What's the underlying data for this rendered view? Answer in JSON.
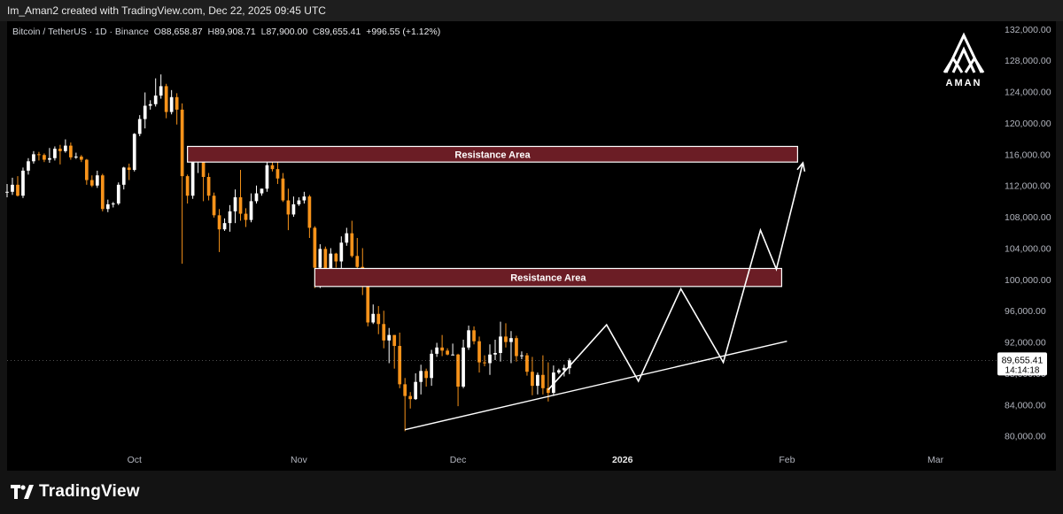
{
  "header": {
    "attribution": "Im_Aman2 created with TradingView.com, Dec 22, 2025 09:45 UTC"
  },
  "legend": {
    "symbol": "Bitcoin / TetherUS · 1D · Binance",
    "open_label": "O",
    "open": "88,658.87",
    "high_label": "H",
    "high": "89,908.71",
    "low_label": "L",
    "low": "87,900.00",
    "close_label": "C",
    "close": "89,655.41",
    "change": "+996.55 (+1.12%)"
  },
  "price_tag": {
    "price": "89,655.41",
    "countdown": "14:14:18"
  },
  "brand": {
    "logo_text": "AMAN"
  },
  "footer": {
    "logo_text": "TradingView"
  },
  "colors": {
    "up": "#ffffff",
    "down": "#f7931a",
    "zone_fill": "#6b1d25",
    "zone_border": "#ffffff",
    "background": "#000000",
    "axis_text": "#b2b5be"
  },
  "chart_data": {
    "type": "candlestick",
    "title": "Bitcoin / TetherUS",
    "timeframe": "1D",
    "exchange": "Binance",
    "y_axis": {
      "ticks": [
        "132,000.00",
        "128,000.00",
        "124,000.00",
        "120,000.00",
        "116,000.00",
        "112,000.00",
        "108,000.00",
        "104,000.00",
        "100,000.00",
        "96,000.00",
        "92,000.00",
        "88,000.00",
        "84,000.00",
        "80,000.00"
      ],
      "range": [
        78500,
        133000
      ]
    },
    "x_axis": {
      "ticks": [
        {
          "label": "Oct",
          "date": "2025-10-01"
        },
        {
          "label": "Nov",
          "date": "2025-11-01"
        },
        {
          "label": "Dec",
          "date": "2025-12-01"
        },
        {
          "label": "2026",
          "date": "2026-01-01",
          "bold": true
        },
        {
          "label": "Feb",
          "date": "2026-02-01"
        },
        {
          "label": "Mar",
          "date": "2026-03-01"
        }
      ],
      "range": [
        "2025-09-07",
        "2026-03-10"
      ]
    },
    "candles": [
      {
        "date": "2025-09-07",
        "o": 111100,
        "h": 112200,
        "l": 110500,
        "c": 111200
      },
      {
        "date": "2025-09-08",
        "o": 111200,
        "h": 113000,
        "l": 110800,
        "c": 112100
      },
      {
        "date": "2025-09-09",
        "o": 112100,
        "h": 113200,
        "l": 110600,
        "c": 110700
      },
      {
        "date": "2025-09-10",
        "o": 110700,
        "h": 114300,
        "l": 110400,
        "c": 113900
      },
      {
        "date": "2025-09-11",
        "o": 113900,
        "h": 115500,
        "l": 113400,
        "c": 115100
      },
      {
        "date": "2025-09-12",
        "o": 115100,
        "h": 116400,
        "l": 114800,
        "c": 116000
      },
      {
        "date": "2025-09-13",
        "o": 116000,
        "h": 116300,
        "l": 115200,
        "c": 115900
      },
      {
        "date": "2025-09-14",
        "o": 115900,
        "h": 116100,
        "l": 115000,
        "c": 115300
      },
      {
        "date": "2025-09-15",
        "o": 115300,
        "h": 116800,
        "l": 114900,
        "c": 115500
      },
      {
        "date": "2025-09-16",
        "o": 115500,
        "h": 117000,
        "l": 115200,
        "c": 116700
      },
      {
        "date": "2025-09-17",
        "o": 116700,
        "h": 117200,
        "l": 114700,
        "c": 116400
      },
      {
        "date": "2025-09-18",
        "o": 116400,
        "h": 117900,
        "l": 116200,
        "c": 117100
      },
      {
        "date": "2025-09-19",
        "o": 117100,
        "h": 117500,
        "l": 115300,
        "c": 115600
      },
      {
        "date": "2025-09-20",
        "o": 115600,
        "h": 116200,
        "l": 115400,
        "c": 115700
      },
      {
        "date": "2025-09-21",
        "o": 115700,
        "h": 115900,
        "l": 115000,
        "c": 115300
      },
      {
        "date": "2025-09-22",
        "o": 115300,
        "h": 115400,
        "l": 112100,
        "c": 112700
      },
      {
        "date": "2025-09-23",
        "o": 112700,
        "h": 113300,
        "l": 111800,
        "c": 112000
      },
      {
        "date": "2025-09-24",
        "o": 112000,
        "h": 113900,
        "l": 111700,
        "c": 113300
      },
      {
        "date": "2025-09-25",
        "o": 113300,
        "h": 113500,
        "l": 108700,
        "c": 109000
      },
      {
        "date": "2025-09-26",
        "o": 109000,
        "h": 110200,
        "l": 108600,
        "c": 109600
      },
      {
        "date": "2025-09-27",
        "o": 109600,
        "h": 109900,
        "l": 109200,
        "c": 109700
      },
      {
        "date": "2025-09-28",
        "o": 109700,
        "h": 112400,
        "l": 109500,
        "c": 112100
      },
      {
        "date": "2025-09-29",
        "o": 112100,
        "h": 114400,
        "l": 111500,
        "c": 114300
      },
      {
        "date": "2025-09-30",
        "o": 114300,
        "h": 114800,
        "l": 112700,
        "c": 114000
      },
      {
        "date": "2025-10-01",
        "o": 114000,
        "h": 118700,
        "l": 113800,
        "c": 118600
      },
      {
        "date": "2025-10-02",
        "o": 118600,
        "h": 121000,
        "l": 118300,
        "c": 120500
      },
      {
        "date": "2025-10-03",
        "o": 120500,
        "h": 123900,
        "l": 119300,
        "c": 122200
      },
      {
        "date": "2025-10-04",
        "o": 122200,
        "h": 122900,
        "l": 121700,
        "c": 122400
      },
      {
        "date": "2025-10-05",
        "o": 122400,
        "h": 125700,
        "l": 122100,
        "c": 123500
      },
      {
        "date": "2025-10-06",
        "o": 123500,
        "h": 126200,
        "l": 123100,
        "c": 124700
      },
      {
        "date": "2025-10-07",
        "o": 124700,
        "h": 125000,
        "l": 120600,
        "c": 121400
      },
      {
        "date": "2025-10-08",
        "o": 121400,
        "h": 124200,
        "l": 121100,
        "c": 123300
      },
      {
        "date": "2025-10-09",
        "o": 123300,
        "h": 123800,
        "l": 119800,
        "c": 121700
      },
      {
        "date": "2025-10-10",
        "o": 121700,
        "h": 122500,
        "l": 102000,
        "c": 113200
      },
      {
        "date": "2025-10-11",
        "o": 113200,
        "h": 113400,
        "l": 109700,
        "c": 110700
      },
      {
        "date": "2025-10-12",
        "o": 110700,
        "h": 115500,
        "l": 110300,
        "c": 115100
      },
      {
        "date": "2025-10-13",
        "o": 115100,
        "h": 115900,
        "l": 113600,
        "c": 115200
      },
      {
        "date": "2025-10-14",
        "o": 115200,
        "h": 115400,
        "l": 110000,
        "c": 113100
      },
      {
        "date": "2025-10-15",
        "o": 113100,
        "h": 113600,
        "l": 110100,
        "c": 110700
      },
      {
        "date": "2025-10-16",
        "o": 110700,
        "h": 111100,
        "l": 107900,
        "c": 108200
      },
      {
        "date": "2025-10-17",
        "o": 108200,
        "h": 109000,
        "l": 103500,
        "c": 106400
      },
      {
        "date": "2025-10-18",
        "o": 106400,
        "h": 107800,
        "l": 106200,
        "c": 107200
      },
      {
        "date": "2025-10-19",
        "o": 107200,
        "h": 109500,
        "l": 106100,
        "c": 108700
      },
      {
        "date": "2025-10-20",
        "o": 108700,
        "h": 111500,
        "l": 107200,
        "c": 110500
      },
      {
        "date": "2025-10-21",
        "o": 110500,
        "h": 114000,
        "l": 107500,
        "c": 108400
      },
      {
        "date": "2025-10-22",
        "o": 108400,
        "h": 109100,
        "l": 106700,
        "c": 107600
      },
      {
        "date": "2025-10-23",
        "o": 107600,
        "h": 111000,
        "l": 107300,
        "c": 110000
      },
      {
        "date": "2025-10-24",
        "o": 110000,
        "h": 112000,
        "l": 109700,
        "c": 111000
      },
      {
        "date": "2025-10-25",
        "o": 111000,
        "h": 111600,
        "l": 110700,
        "c": 111600
      },
      {
        "date": "2025-10-26",
        "o": 111600,
        "h": 115300,
        "l": 111200,
        "c": 114600
      },
      {
        "date": "2025-10-27",
        "o": 114600,
        "h": 116400,
        "l": 113800,
        "c": 114100
      },
      {
        "date": "2025-10-28",
        "o": 114100,
        "h": 116000,
        "l": 112200,
        "c": 112900
      },
      {
        "date": "2025-10-29",
        "o": 112900,
        "h": 113600,
        "l": 109900,
        "c": 110100
      },
      {
        "date": "2025-10-30",
        "o": 110100,
        "h": 111600,
        "l": 106300,
        "c": 108300
      },
      {
        "date": "2025-10-31",
        "o": 108300,
        "h": 110600,
        "l": 108000,
        "c": 109600
      },
      {
        "date": "2025-11-01",
        "o": 109600,
        "h": 110500,
        "l": 109400,
        "c": 110100
      },
      {
        "date": "2025-11-02",
        "o": 110100,
        "h": 111200,
        "l": 109700,
        "c": 110600
      },
      {
        "date": "2025-11-03",
        "o": 110600,
        "h": 110800,
        "l": 105300,
        "c": 106600
      },
      {
        "date": "2025-11-04",
        "o": 106600,
        "h": 106800,
        "l": 98900,
        "c": 101500
      },
      {
        "date": "2025-11-05",
        "o": 101500,
        "h": 104500,
        "l": 98900,
        "c": 103900
      },
      {
        "date": "2025-11-06",
        "o": 103900,
        "h": 104200,
        "l": 100300,
        "c": 101300
      },
      {
        "date": "2025-11-07",
        "o": 101300,
        "h": 104000,
        "l": 99300,
        "c": 103300
      },
      {
        "date": "2025-11-08",
        "o": 103300,
        "h": 103400,
        "l": 101500,
        "c": 102300
      },
      {
        "date": "2025-11-09",
        "o": 102300,
        "h": 105500,
        "l": 101400,
        "c": 104700
      },
      {
        "date": "2025-11-10",
        "o": 104700,
        "h": 106600,
        "l": 104300,
        "c": 105900
      },
      {
        "date": "2025-11-11",
        "o": 105900,
        "h": 107500,
        "l": 102800,
        "c": 103000
      },
      {
        "date": "2025-11-12",
        "o": 103000,
        "h": 105300,
        "l": 100000,
        "c": 101600
      },
      {
        "date": "2025-11-13",
        "o": 101600,
        "h": 104000,
        "l": 98000,
        "c": 99700
      },
      {
        "date": "2025-11-14",
        "o": 99700,
        "h": 99900,
        "l": 94000,
        "c": 94500
      },
      {
        "date": "2025-11-15",
        "o": 94500,
        "h": 96800,
        "l": 94300,
        "c": 95600
      },
      {
        "date": "2025-11-16",
        "o": 95600,
        "h": 96600,
        "l": 93000,
        "c": 94300
      },
      {
        "date": "2025-11-17",
        "o": 94300,
        "h": 96000,
        "l": 91200,
        "c": 92200
      },
      {
        "date": "2025-11-18",
        "o": 92200,
        "h": 93800,
        "l": 89300,
        "c": 92900
      },
      {
        "date": "2025-11-19",
        "o": 92900,
        "h": 92900,
        "l": 88600,
        "c": 91500
      },
      {
        "date": "2025-11-20",
        "o": 91500,
        "h": 93200,
        "l": 86100,
        "c": 86600
      },
      {
        "date": "2025-11-21",
        "o": 86600,
        "h": 87400,
        "l": 80600,
        "c": 85100
      },
      {
        "date": "2025-11-22",
        "o": 85100,
        "h": 85600,
        "l": 83500,
        "c": 84700
      },
      {
        "date": "2025-11-23",
        "o": 84700,
        "h": 88000,
        "l": 84600,
        "c": 86900
      },
      {
        "date": "2025-11-24",
        "o": 86900,
        "h": 89100,
        "l": 85300,
        "c": 88300
      },
      {
        "date": "2025-11-25",
        "o": 88300,
        "h": 88600,
        "l": 86300,
        "c": 87400
      },
      {
        "date": "2025-11-26",
        "o": 87400,
        "h": 91000,
        "l": 86400,
        "c": 90500
      },
      {
        "date": "2025-11-27",
        "o": 90500,
        "h": 91900,
        "l": 90100,
        "c": 91300
      },
      {
        "date": "2025-11-28",
        "o": 91300,
        "h": 92900,
        "l": 90200,
        "c": 90900
      },
      {
        "date": "2025-11-29",
        "o": 90900,
        "h": 91200,
        "l": 90300,
        "c": 90400
      },
      {
        "date": "2025-11-30",
        "o": 90400,
        "h": 91800,
        "l": 90300,
        "c": 90400
      },
      {
        "date": "2025-12-01",
        "o": 90400,
        "h": 90500,
        "l": 83800,
        "c": 86300
      },
      {
        "date": "2025-12-02",
        "o": 86300,
        "h": 92300,
        "l": 86100,
        "c": 91300
      },
      {
        "date": "2025-12-03",
        "o": 91300,
        "h": 94100,
        "l": 91000,
        "c": 93500
      },
      {
        "date": "2025-12-04",
        "o": 93500,
        "h": 94000,
        "l": 91700,
        "c": 92100
      },
      {
        "date": "2025-12-05",
        "o": 92100,
        "h": 92700,
        "l": 88100,
        "c": 89400
      },
      {
        "date": "2025-12-06",
        "o": 89400,
        "h": 90300,
        "l": 88900,
        "c": 89300
      },
      {
        "date": "2025-12-07",
        "o": 89300,
        "h": 91700,
        "l": 87800,
        "c": 90400
      },
      {
        "date": "2025-12-08",
        "o": 90400,
        "h": 92300,
        "l": 89700,
        "c": 90600
      },
      {
        "date": "2025-12-09",
        "o": 90600,
        "h": 94600,
        "l": 89500,
        "c": 92700
      },
      {
        "date": "2025-12-10",
        "o": 92700,
        "h": 94400,
        "l": 91300,
        "c": 92000
      },
      {
        "date": "2025-12-11",
        "o": 92000,
        "h": 93400,
        "l": 89300,
        "c": 92500
      },
      {
        "date": "2025-12-12",
        "o": 92500,
        "h": 92800,
        "l": 89500,
        "c": 90200
      },
      {
        "date": "2025-12-13",
        "o": 90200,
        "h": 90800,
        "l": 89800,
        "c": 90300
      },
      {
        "date": "2025-12-14",
        "o": 90300,
        "h": 90600,
        "l": 87700,
        "c": 88200
      },
      {
        "date": "2025-12-15",
        "o": 88200,
        "h": 90100,
        "l": 85200,
        "c": 86400
      },
      {
        "date": "2025-12-16",
        "o": 86400,
        "h": 88100,
        "l": 85300,
        "c": 87800
      },
      {
        "date": "2025-12-17",
        "o": 87800,
        "h": 90300,
        "l": 85300,
        "c": 86100
      },
      {
        "date": "2025-12-18",
        "o": 86100,
        "h": 89400,
        "l": 84400,
        "c": 85500
      },
      {
        "date": "2025-12-19",
        "o": 85500,
        "h": 89000,
        "l": 85100,
        "c": 88100
      },
      {
        "date": "2025-12-20",
        "o": 88100,
        "h": 88600,
        "l": 87900,
        "c": 88400
      },
      {
        "date": "2025-12-21",
        "o": 88400,
        "h": 89100,
        "l": 87600,
        "c": 88700
      },
      {
        "date": "2025-12-22",
        "o": 88659,
        "h": 89909,
        "l": 87900,
        "c": 89655
      }
    ],
    "annotations": {
      "zones": [
        {
          "label": "Resistance Area",
          "from": "2025-10-11",
          "to": "2026-02-03",
          "low": 115000,
          "high": 117000
        },
        {
          "label": "Resistance Area",
          "from": "2025-11-04",
          "to": "2026-01-31",
          "low": 99100,
          "high": 101400
        }
      ],
      "trendline": {
        "from": {
          "date": "2025-11-21",
          "price": 80800
        },
        "to": {
          "date": "2026-02-01",
          "price": 92100
        }
      },
      "projection": [
        {
          "date": "2025-12-18",
          "price": 85900
        },
        {
          "date": "2025-12-29",
          "price": 94200
        },
        {
          "date": "2026-01-04",
          "price": 87000
        },
        {
          "date": "2026-01-12",
          "price": 98800
        },
        {
          "date": "2026-01-20",
          "price": 89400
        },
        {
          "date": "2026-01-27",
          "price": 106300
        },
        {
          "date": "2026-01-30",
          "price": 101300
        },
        {
          "date": "2026-02-04",
          "price": 114900
        }
      ]
    },
    "last_price": 89655.41
  }
}
